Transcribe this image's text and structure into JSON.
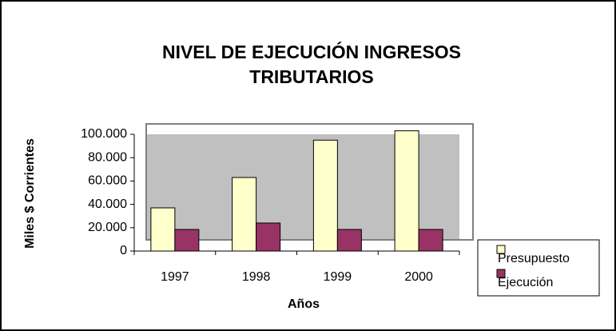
{
  "chart_data": {
    "type": "bar",
    "title": "NIVEL DE EJECUCIÓN INGRESOS TRIBUTARIOS",
    "x_label": "Años",
    "y_label": "Miles $ Corrientes",
    "categories": [
      "1997",
      "1998",
      "1999",
      "2000"
    ],
    "series": [
      {
        "name": "Presupuesto",
        "color": "#ffffcc",
        "values": [
          37000,
          63000,
          95000,
          103000
        ]
      },
      {
        "name": "Ejecución",
        "color": "#993366",
        "values": [
          18500,
          24000,
          18500,
          18500
        ]
      }
    ],
    "ylim": [
      0,
      100000
    ],
    "yticks": [
      0,
      {
        "value": 20000,
        "label": "20.000"
      },
      {
        "value": 40000,
        "label": "40.000"
      },
      {
        "value": 60000,
        "label": "60.000"
      },
      {
        "value": 80000,
        "label": "80.000"
      },
      {
        "value": 100000,
        "label": "100.000"
      }
    ],
    "legend": "right"
  }
}
